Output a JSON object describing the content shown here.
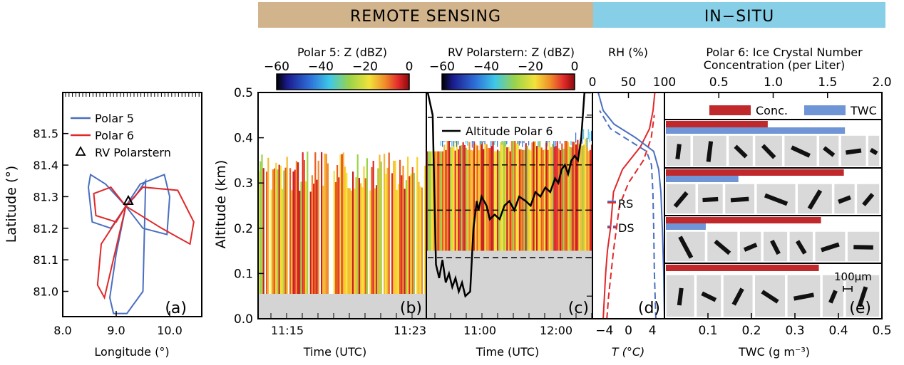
{
  "header": {
    "remote_sensing": "REMOTE SENSING",
    "in_situ": "IN−SITU",
    "remote_color": "#d2b48c",
    "insitu_color": "#87cfe7"
  },
  "colors": {
    "polar5": "#4a6fc0",
    "polar6": "#e0282a",
    "conc_bar": "#c0282c",
    "twc_bar": "#6f95d6",
    "surface_gray": "#d4d4d4"
  },
  "chart_data": [
    {
      "id": "a",
      "type": "line",
      "panel_label": "(a)",
      "xlabel": "Longitude (°)",
      "ylabel": "Latitude (°)",
      "xlim": [
        8.0,
        10.6
      ],
      "ylim": [
        80.92,
        81.63
      ],
      "xticks": [
        "8.0",
        "9.0",
        "10.0"
      ],
      "xtick_values": [
        8.0,
        9.0,
        10.0
      ],
      "yticks": [
        "81.0",
        "81.1",
        "81.2",
        "81.3",
        "81.4",
        "81.5"
      ],
      "ytick_values": [
        81.0,
        81.1,
        81.2,
        81.3,
        81.4,
        81.5
      ],
      "legend": [
        "Polar 5",
        "Polar 6",
        "RV Polarstern"
      ],
      "polarstern_position": {
        "lon": 9.18,
        "lat": 81.27
      },
      "series": [
        {
          "name": "Polar 5",
          "lon": [
            9.18,
            8.8,
            8.52,
            8.48,
            8.55,
            8.9,
            9.18,
            9.45,
            9.9,
            10.0,
            9.95,
            9.5,
            9.18,
            9.0,
            8.88,
            8.95,
            9.2,
            9.5,
            9.55,
            9.35,
            9.18
          ],
          "lat": [
            81.27,
            81.34,
            81.37,
            81.33,
            81.22,
            81.2,
            81.27,
            81.34,
            81.37,
            81.3,
            81.18,
            81.2,
            81.27,
            81.12,
            80.98,
            80.93,
            80.93,
            81.0,
            81.35,
            81.3,
            81.27
          ]
        },
        {
          "name": "Polar 6",
          "lon": [
            9.18,
            8.9,
            8.58,
            8.62,
            9.0,
            9.18,
            9.5,
            10.15,
            10.45,
            10.38,
            9.85,
            9.18,
            8.72,
            8.65,
            8.78,
            9.18
          ],
          "lat": [
            81.27,
            81.33,
            81.31,
            81.24,
            81.22,
            81.27,
            81.33,
            81.32,
            81.22,
            81.15,
            81.2,
            81.27,
            81.15,
            81.02,
            80.98,
            81.27
          ]
        }
      ]
    },
    {
      "id": "b",
      "type": "heatmap",
      "panel_label": "(b)",
      "colorbar_title": "Polar 5: Z (dBZ)",
      "colorbar_ticks": [
        "−60",
        "−40",
        "−20",
        "0"
      ],
      "colorbar_range": [
        -60,
        0
      ],
      "xlabel": "Time (UTC)",
      "ylabel": "Altitude (km)",
      "xticks": [
        "11:15",
        "11:23"
      ],
      "ylim": [
        0,
        0.5
      ],
      "yticks": [
        "0.0",
        "0.1",
        "0.2",
        "0.3",
        "0.4",
        "0.5"
      ],
      "ytick_values": [
        0.0,
        0.1,
        0.2,
        0.3,
        0.4,
        0.5
      ],
      "surface_top_km": 0.055,
      "echo_top_km": 0.37
    },
    {
      "id": "c",
      "type": "heatmap",
      "panel_label": "(c)",
      "colorbar_title": "RV Polarstern: Z (dBZ)",
      "colorbar_ticks": [
        "−60",
        "−40",
        "−20",
        "0"
      ],
      "colorbar_range": [
        -60,
        0
      ],
      "xlabel": "Time (UTC)",
      "xticks": [
        "11:00",
        "12:00"
      ],
      "ylim": [
        0,
        0.5
      ],
      "legend": [
        "Altitude Polar 6"
      ],
      "surface_top_km": 0.15,
      "echo_top_km": 0.42,
      "dashed_levels_km": [
        0.135,
        0.24,
        0.34,
        0.445
      ],
      "series": [
        {
          "name": "Altitude Polar 6",
          "t": [
            0.0,
            0.03,
            0.05,
            0.07,
            0.09,
            0.11,
            0.13,
            0.15,
            0.17,
            0.19,
            0.21,
            0.23,
            0.26,
            0.28,
            0.3,
            0.31,
            0.33,
            0.36,
            0.38,
            0.41,
            0.44,
            0.47,
            0.5,
            0.53,
            0.56,
            0.6,
            0.63,
            0.66,
            0.69,
            0.72,
            0.75,
            0.78,
            0.8,
            0.82,
            0.84,
            0.86,
            0.88,
            0.9,
            0.92,
            0.94,
            0.96,
            1.0
          ],
          "alt": [
            0.5,
            0.45,
            0.12,
            0.09,
            0.13,
            0.08,
            0.1,
            0.07,
            0.09,
            0.06,
            0.08,
            0.05,
            0.06,
            0.2,
            0.26,
            0.24,
            0.27,
            0.25,
            0.22,
            0.23,
            0.22,
            0.25,
            0.26,
            0.24,
            0.27,
            0.26,
            0.25,
            0.28,
            0.27,
            0.29,
            0.28,
            0.31,
            0.3,
            0.33,
            0.34,
            0.32,
            0.35,
            0.36,
            0.35,
            0.4,
            0.5,
            0.5
          ]
        }
      ]
    },
    {
      "id": "d",
      "type": "line",
      "panel_label": "(d)",
      "top_axis_title": "RH (%)",
      "top_ticks": [
        "0",
        "50",
        "100"
      ],
      "top_tick_values": [
        0,
        50,
        100
      ],
      "xlabel": "T (°C)",
      "xticks": [
        "−4",
        "0",
        "4"
      ],
      "xtick_values": [
        -4,
        0,
        4
      ],
      "ylim": [
        0,
        0.5
      ],
      "legend": [
        "RS",
        "DS"
      ],
      "series": [
        {
          "name": "T RS",
          "quantity": "T",
          "style": "solid",
          "x": [
            -4.2,
            -4.0,
            -3.8,
            -3.5,
            -3.0,
            -2.5,
            -1.0,
            2.0,
            3.5,
            4.1,
            4.4
          ],
          "y": [
            0.0,
            0.05,
            0.1,
            0.15,
            0.2,
            0.28,
            0.33,
            0.38,
            0.42,
            0.46,
            0.5
          ]
        },
        {
          "name": "T DS",
          "quantity": "T",
          "style": "dashed",
          "x": [
            -3.6,
            -3.3,
            -2.9,
            -2.5,
            -2.0,
            -1.5,
            0.0,
            2.5,
            3.8,
            4.3
          ],
          "y": [
            0.0,
            0.05,
            0.1,
            0.15,
            0.2,
            0.25,
            0.3,
            0.35,
            0.4,
            0.45
          ]
        },
        {
          "name": "RH RS",
          "quantity": "RH",
          "style": "solid",
          "x": [
            100,
            99,
            97,
            95,
            92,
            85,
            60,
            30,
            15,
            8
          ],
          "y": [
            0.0,
            0.1,
            0.2,
            0.28,
            0.33,
            0.37,
            0.4,
            0.43,
            0.46,
            0.5
          ]
        },
        {
          "name": "RH DS",
          "quantity": "RH",
          "style": "dashed",
          "x": [
            88,
            86,
            85,
            84,
            82,
            75,
            55,
            25,
            10
          ],
          "y": [
            0.0,
            0.1,
            0.2,
            0.28,
            0.34,
            0.37,
            0.39,
            0.42,
            0.46
          ]
        }
      ]
    },
    {
      "id": "e",
      "type": "bar",
      "panel_label": "(e)",
      "top_axis_title_line1": "Polar 6: Ice Crystal Number",
      "top_axis_title_line2": "Concentration (per Liter)",
      "top_ticks": [
        "0.5",
        "1.0",
        "1.5",
        "2.0"
      ],
      "top_tick_values": [
        0.5,
        1.0,
        1.5,
        2.0
      ],
      "top_range": [
        0,
        2.0
      ],
      "xlabel": "TWC (g m⁻³)",
      "xticks": [
        "0.1",
        "0.2",
        "0.3",
        "0.4",
        "0.5"
      ],
      "xtick_values": [
        0.1,
        0.2,
        0.3,
        0.4,
        0.5
      ],
      "xlim": [
        0,
        0.5
      ],
      "legend": [
        "Conc.",
        "TWC"
      ],
      "scale_bar_label": "100μm",
      "series": [
        {
          "name": "Conc.",
          "unit": "per Liter",
          "values": [
            0.95,
            1.65,
            1.44,
            1.42
          ]
        },
        {
          "name": "TWC",
          "unit": "g m-3",
          "values": [
            0.415,
            0.17,
            0.095,
            null
          ]
        }
      ]
    }
  ]
}
